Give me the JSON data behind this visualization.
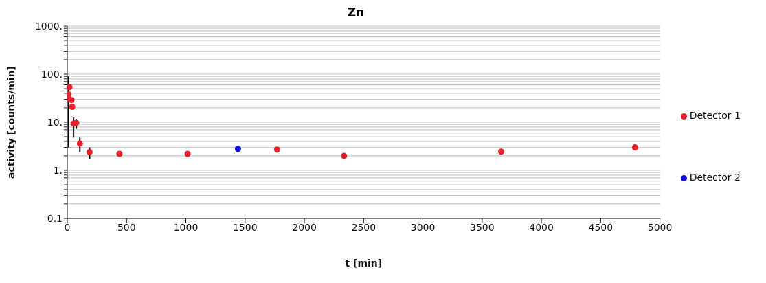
{
  "chart_data": {
    "type": "scatter",
    "title": "Zn",
    "xlabel": "t [min]",
    "ylabel": "activity [counts/min]",
    "xlim": [
      0,
      5000
    ],
    "xticks": [
      0,
      500,
      1000,
      1500,
      2000,
      2500,
      3000,
      3500,
      4000,
      4500,
      5000
    ],
    "ylim": [
      0.1,
      1000
    ],
    "log": "y",
    "yticks": [
      {
        "value": 0.1,
        "label": "0.1"
      },
      {
        "value": 0.2,
        "label": null
      },
      {
        "value": 0.3,
        "label": null
      },
      {
        "value": 0.4,
        "label": null
      },
      {
        "value": 0.5,
        "label": null
      },
      {
        "value": 0.6,
        "label": null
      },
      {
        "value": 0.7,
        "label": null
      },
      {
        "value": 0.8,
        "label": null
      },
      {
        "value": 0.9,
        "label": null
      },
      {
        "value": 1,
        "label": "1."
      },
      {
        "value": 2,
        "label": null
      },
      {
        "value": 3,
        "label": null
      },
      {
        "value": 4,
        "label": null
      },
      {
        "value": 5,
        "label": null
      },
      {
        "value": 6,
        "label": null
      },
      {
        "value": 7,
        "label": null
      },
      {
        "value": 8,
        "label": null
      },
      {
        "value": 9,
        "label": null
      },
      {
        "value": 10,
        "label": "10."
      },
      {
        "value": 20,
        "label": null
      },
      {
        "value": 30,
        "label": null
      },
      {
        "value": 40,
        "label": null
      },
      {
        "value": 50,
        "label": null
      },
      {
        "value": 60,
        "label": null
      },
      {
        "value": 70,
        "label": null
      },
      {
        "value": 80,
        "label": null
      },
      {
        "value": 90,
        "label": null
      },
      {
        "value": 100,
        "label": "100."
      },
      {
        "value": 200,
        "label": null
      },
      {
        "value": 300,
        "label": null
      },
      {
        "value": 400,
        "label": null
      },
      {
        "value": 500,
        "label": null
      },
      {
        "value": 600,
        "label": null
      },
      {
        "value": 700,
        "label": null
      },
      {
        "value": 800,
        "label": null
      },
      {
        "value": 900,
        "label": null
      },
      {
        "value": 1000,
        "label": "1000."
      }
    ],
    "grid": "y",
    "legend": "right",
    "marker": "circle",
    "series": [
      {
        "name": "Detector 1",
        "color": "#e8202a",
        "x": [
          10,
          13,
          18,
          35,
          41,
          53,
          76,
          106,
          188,
          440,
          1015,
          1770,
          2335,
          3660,
          4790
        ],
        "values": [
          38,
          31,
          54,
          29,
          21,
          9.4,
          9.7,
          3.6,
          2.4,
          2.2,
          2.2,
          2.7,
          2.0,
          2.45,
          3.0
        ],
        "errors": [
          [
            3,
            90
          ],
          null,
          null,
          null,
          null,
          [
            4.8,
            12.5
          ],
          [
            7.3,
            11.7
          ],
          [
            2.4,
            4.8
          ],
          [
            1.7,
            3.0
          ],
          null,
          null,
          null,
          null,
          null,
          null
        ]
      },
      {
        "name": "Detector 2",
        "color": "#1010e0",
        "x": [
          1440
        ],
        "values": [
          2.8
        ]
      }
    ]
  }
}
